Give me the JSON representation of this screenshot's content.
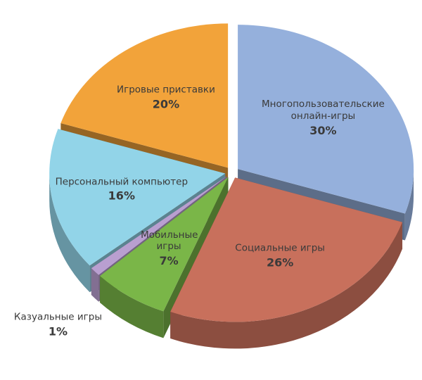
{
  "chart_data": {
    "type": "pie",
    "categories": [
      "Многопользовательские онлайн-игры",
      "Социальные игры",
      "Мобильные игры",
      "Казуальные игры",
      "Персональный компьютер",
      "Игровые приставки"
    ],
    "values": [
      30,
      26,
      7,
      1,
      16,
      20
    ],
    "value_labels": [
      "30%",
      "26%",
      "7%",
      "1%",
      "16%",
      "20%"
    ],
    "colors": [
      "#95b0dc",
      "#c8705c",
      "#7ab648",
      "#b99fd0",
      "#92d4e8",
      "#f2a33a"
    ]
  }
}
